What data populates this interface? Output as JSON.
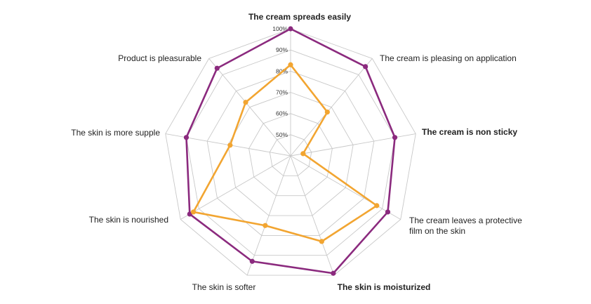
{
  "colors": {
    "series_a": "#8b2a7e",
    "series_b": "#f2a531",
    "grid": "#c8c8c8",
    "highlight_label": "#8b2a7e"
  },
  "chart_data": {
    "type": "radar",
    "rlim": [
      40,
      100
    ],
    "ticks": [
      50,
      60,
      70,
      80,
      90,
      100
    ],
    "tick_labels": [
      "50%",
      "60%",
      "70%",
      "80%",
      "90%",
      "100%"
    ],
    "grid": true,
    "axes": [
      {
        "label": "The cream spreads easily",
        "highlight": true
      },
      {
        "label": "The cream is pleasing on application",
        "highlight": false
      },
      {
        "label": "The cream is non sticky",
        "highlight": true
      },
      {
        "label": "The cream leaves a protective|film on the skin",
        "highlight": false
      },
      {
        "label": "The skin is moisturized",
        "highlight": true
      },
      {
        "label": "The skin is softer",
        "highlight": false
      },
      {
        "label": "The skin is nourished",
        "highlight": false
      },
      {
        "label": "The skin is more supple",
        "highlight": false
      },
      {
        "label": "Product is pleasurable",
        "highlight": false
      }
    ],
    "series": [
      {
        "values": [
          100,
          95,
          90,
          93,
          99,
          93,
          95,
          90,
          94
        ]
      },
      {
        "values": [
          83,
          67,
          46,
          87,
          83,
          75,
          93,
          69,
          73
        ]
      }
    ]
  }
}
